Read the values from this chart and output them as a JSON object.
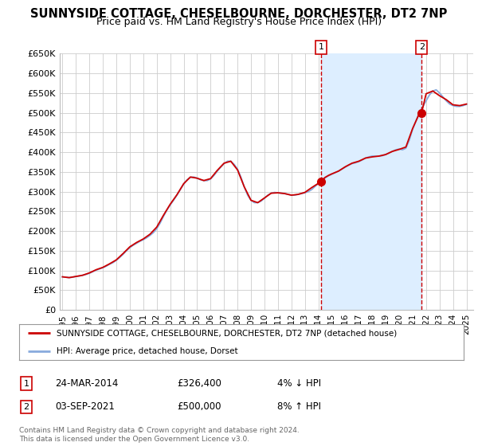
{
  "title": "SUNNYSIDE COTTAGE, CHESELBOURNE, DORCHESTER, DT2 7NP",
  "subtitle": "Price paid vs. HM Land Registry's House Price Index (HPI)",
  "ylim": [
    0,
    650000
  ],
  "yticks": [
    0,
    50000,
    100000,
    150000,
    200000,
    250000,
    300000,
    350000,
    400000,
    450000,
    500000,
    550000,
    600000,
    650000
  ],
  "ytick_labels": [
    "£0",
    "£50K",
    "£100K",
    "£150K",
    "£200K",
    "£250K",
    "£300K",
    "£350K",
    "£400K",
    "£450K",
    "£500K",
    "£550K",
    "£600K",
    "£650K"
  ],
  "xlim_start": 1994.8,
  "xlim_end": 2025.5,
  "property_color": "#cc0000",
  "hpi_color": "#88aadd",
  "fill_color": "#ddeeff",
  "sale1_x": 2014.22,
  "sale1_y": 326400,
  "sale2_x": 2021.67,
  "sale2_y": 500000,
  "legend_property": "SUNNYSIDE COTTAGE, CHESELBOURNE, DORCHESTER, DT2 7NP (detached house)",
  "legend_hpi": "HPI: Average price, detached house, Dorset",
  "annotation1_label": "1",
  "annotation1_date": "24-MAR-2014",
  "annotation1_price": "£326,400",
  "annotation1_hpi": "4% ↓ HPI",
  "annotation2_label": "2",
  "annotation2_date": "03-SEP-2021",
  "annotation2_price": "£500,000",
  "annotation2_hpi": "8% ↑ HPI",
  "footer": "Contains HM Land Registry data © Crown copyright and database right 2024.\nThis data is licensed under the Open Government Licence v3.0.",
  "background_color": "#ffffff",
  "grid_color": "#cccccc",
  "title_fontsize": 10.5,
  "subtitle_fontsize": 9,
  "tick_fontsize": 8,
  "hpi_data_x": [
    1995.0,
    1995.25,
    1995.5,
    1995.75,
    1996.0,
    1996.25,
    1996.5,
    1996.75,
    1997.0,
    1997.25,
    1997.5,
    1997.75,
    1998.0,
    1998.25,
    1998.5,
    1998.75,
    1999.0,
    1999.25,
    1999.5,
    1999.75,
    2000.0,
    2000.25,
    2000.5,
    2000.75,
    2001.0,
    2001.25,
    2001.5,
    2001.75,
    2002.0,
    2002.25,
    2002.5,
    2002.75,
    2003.0,
    2003.25,
    2003.5,
    2003.75,
    2004.0,
    2004.25,
    2004.5,
    2004.75,
    2005.0,
    2005.25,
    2005.5,
    2005.75,
    2006.0,
    2006.25,
    2006.5,
    2006.75,
    2007.0,
    2007.25,
    2007.5,
    2007.75,
    2008.0,
    2008.25,
    2008.5,
    2008.75,
    2009.0,
    2009.25,
    2009.5,
    2009.75,
    2010.0,
    2010.25,
    2010.5,
    2010.75,
    2011.0,
    2011.25,
    2011.5,
    2011.75,
    2012.0,
    2012.25,
    2012.5,
    2012.75,
    2013.0,
    2013.25,
    2013.5,
    2013.75,
    2014.0,
    2014.25,
    2014.5,
    2014.75,
    2015.0,
    2015.25,
    2015.5,
    2015.75,
    2016.0,
    2016.25,
    2016.5,
    2016.75,
    2017.0,
    2017.25,
    2017.5,
    2017.75,
    2018.0,
    2018.25,
    2018.5,
    2018.75,
    2019.0,
    2019.25,
    2019.5,
    2019.75,
    2020.0,
    2020.25,
    2020.5,
    2020.75,
    2021.0,
    2021.25,
    2021.5,
    2021.75,
    2022.0,
    2022.25,
    2022.5,
    2022.75,
    2023.0,
    2023.25,
    2023.5,
    2023.75,
    2024.0,
    2024.25,
    2024.5,
    2024.75,
    2025.0
  ],
  "hpi_data_y": [
    84000,
    83000,
    82000,
    83000,
    85000,
    86000,
    88000,
    90000,
    93000,
    97000,
    101000,
    104000,
    107000,
    111000,
    116000,
    120000,
    126000,
    133000,
    141000,
    150000,
    158000,
    164000,
    169000,
    174000,
    178000,
    183000,
    189000,
    196000,
    206000,
    220000,
    237000,
    253000,
    266000,
    278000,
    291000,
    305000,
    319000,
    330000,
    336000,
    337000,
    334000,
    330000,
    328000,
    328000,
    332000,
    341000,
    352000,
    362000,
    371000,
    377000,
    377000,
    369000,
    357000,
    337000,
    312000,
    291000,
    278000,
    272000,
    272000,
    276000,
    283000,
    291000,
    296000,
    298000,
    297000,
    296000,
    295000,
    293000,
    291000,
    291000,
    293000,
    295000,
    297000,
    300000,
    305000,
    313000,
    320000,
    327000,
    335000,
    340000,
    344000,
    348000,
    352000,
    357000,
    362000,
    367000,
    371000,
    373000,
    376000,
    380000,
    385000,
    388000,
    390000,
    390000,
    390000,
    391000,
    394000,
    398000,
    402000,
    406000,
    408000,
    406000,
    410000,
    430000,
    458000,
    479000,
    500000,
    515000,
    530000,
    545000,
    555000,
    558000,
    550000,
    540000,
    530000,
    522000,
    518000,
    516000,
    516000,
    518000,
    521000
  ],
  "property_data_x": [
    1995.0,
    1995.5,
    1996.0,
    1996.5,
    1997.0,
    1997.5,
    1998.0,
    1998.5,
    1999.0,
    1999.5,
    2000.0,
    2000.5,
    2001.0,
    2001.5,
    2002.0,
    2002.5,
    2003.0,
    2003.5,
    2004.0,
    2004.5,
    2005.0,
    2005.5,
    2006.0,
    2006.5,
    2007.0,
    2007.5,
    2008.0,
    2008.5,
    2009.0,
    2009.5,
    2010.0,
    2010.5,
    2011.0,
    2011.5,
    2012.0,
    2012.5,
    2013.0,
    2013.5,
    2014.0,
    2014.22,
    2014.5,
    2014.75,
    2015.0,
    2015.5,
    2016.0,
    2016.5,
    2017.0,
    2017.5,
    2018.0,
    2018.5,
    2019.0,
    2019.5,
    2020.0,
    2020.5,
    2021.0,
    2021.5,
    2021.67,
    2022.0,
    2022.5,
    2023.0,
    2023.5,
    2024.0,
    2024.5,
    2025.0
  ],
  "property_data_y": [
    84000,
    82000,
    85000,
    88000,
    94000,
    102000,
    108000,
    117000,
    127000,
    143000,
    160000,
    171000,
    180000,
    192000,
    210000,
    240000,
    268000,
    292000,
    320000,
    337000,
    334000,
    328000,
    333000,
    354000,
    372000,
    377000,
    355000,
    312000,
    278000,
    272000,
    284000,
    296000,
    297000,
    295000,
    291000,
    293000,
    298000,
    310000,
    321000,
    326400,
    336000,
    341000,
    345000,
    352000,
    363000,
    372000,
    377000,
    385000,
    388000,
    390000,
    394000,
    402000,
    407000,
    413000,
    460000,
    498000,
    500000,
    548000,
    555000,
    543000,
    533000,
    520000,
    518000,
    522000
  ]
}
